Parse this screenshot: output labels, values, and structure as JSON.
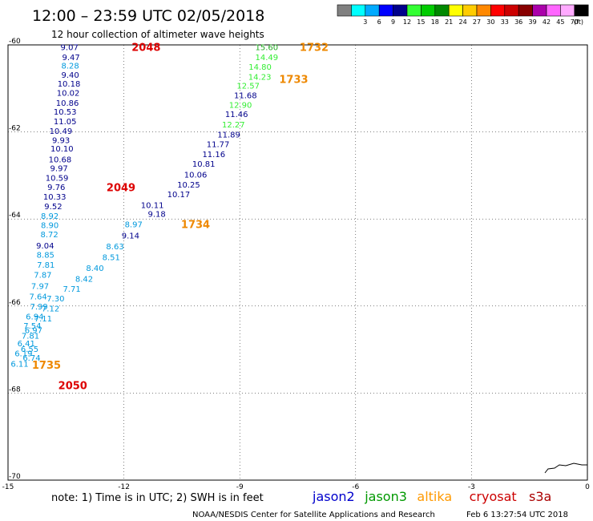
{
  "header": {
    "title": "12:00 – 23:59 UTC 02/05/2018",
    "subtitle": "12 hour collection of altimeter wave heights"
  },
  "colorbar": {
    "unit": "(ft)",
    "bins": [
      {
        "color": "#808080",
        "label": ""
      },
      {
        "color": "#00ffff",
        "label": "3"
      },
      {
        "color": "#00aaff",
        "label": "6"
      },
      {
        "color": "#0000ff",
        "label": "9"
      },
      {
        "color": "#00008b",
        "label": "12"
      },
      {
        "color": "#33ff33",
        "label": "15"
      },
      {
        "color": "#00cc00",
        "label": "18"
      },
      {
        "color": "#008800",
        "label": "21"
      },
      {
        "color": "#ffff00",
        "label": "24"
      },
      {
        "color": "#ffcc00",
        "label": "27"
      },
      {
        "color": "#ff8800",
        "label": "30"
      },
      {
        "color": "#ff0000",
        "label": "33"
      },
      {
        "color": "#cc0000",
        "label": "36"
      },
      {
        "color": "#880000",
        "label": "39"
      },
      {
        "color": "#aa00aa",
        "label": "42"
      },
      {
        "color": "#ff66ff",
        "label": "45"
      },
      {
        "color": "#ffaaff",
        "label": "70"
      },
      {
        "color": "#000000",
        "label": ""
      }
    ]
  },
  "map": {
    "lon_range": [
      -15,
      0
    ],
    "lat_range": [
      -70,
      -60
    ],
    "x_ticks": [
      "-15",
      "-12",
      "-9",
      "-6",
      "-3",
      "0"
    ],
    "y_ticks": [
      "-60",
      "-62",
      "-64",
      "-66",
      "-68",
      "-70"
    ],
    "grid": true
  },
  "observations": [
    {
      "text": "9.07",
      "lon": -13.64,
      "lat": -60.05,
      "color": "#00008b"
    },
    {
      "text": "9.47",
      "lon": -13.6,
      "lat": -60.28,
      "color": "#00008b"
    },
    {
      "text": "8.28",
      "lon": -13.62,
      "lat": -60.47,
      "color": "#0099dd"
    },
    {
      "text": "9.40",
      "lon": -13.62,
      "lat": -60.68,
      "color": "#00008b"
    },
    {
      "text": "10.18",
      "lon": -13.72,
      "lat": -60.88,
      "color": "#00008b"
    },
    {
      "text": "10.02",
      "lon": -13.74,
      "lat": -61.1,
      "color": "#00008b"
    },
    {
      "text": "10.86",
      "lon": -13.76,
      "lat": -61.33,
      "color": "#00008b"
    },
    {
      "text": "10.53",
      "lon": -13.82,
      "lat": -61.53,
      "color": "#00008b"
    },
    {
      "text": "11.05",
      "lon": -13.82,
      "lat": -61.75,
      "color": "#00008b"
    },
    {
      "text": "10.49",
      "lon": -13.93,
      "lat": -61.97,
      "color": "#00008b"
    },
    {
      "text": "9.93",
      "lon": -13.86,
      "lat": -62.18,
      "color": "#00008b"
    },
    {
      "text": "10.10",
      "lon": -13.9,
      "lat": -62.38,
      "color": "#00008b"
    },
    {
      "text": "10.68",
      "lon": -13.95,
      "lat": -62.62,
      "color": "#00008b"
    },
    {
      "text": "9.97",
      "lon": -13.91,
      "lat": -62.83,
      "color": "#00008b"
    },
    {
      "text": "10.59",
      "lon": -14.03,
      "lat": -63.05,
      "color": "#00008b"
    },
    {
      "text": "9.76",
      "lon": -13.98,
      "lat": -63.26,
      "color": "#00008b"
    },
    {
      "text": "10.33",
      "lon": -14.09,
      "lat": -63.48,
      "color": "#00008b"
    },
    {
      "text": "9.52",
      "lon": -14.06,
      "lat": -63.7,
      "color": "#00008b"
    },
    {
      "text": "8.92",
      "lon": -14.15,
      "lat": -63.92,
      "color": "#0099dd"
    },
    {
      "text": "8.90",
      "lon": -14.15,
      "lat": -64.13,
      "color": "#0099dd"
    },
    {
      "text": "8.72",
      "lon": -14.16,
      "lat": -64.35,
      "color": "#0099dd"
    },
    {
      "text": "9.04",
      "lon": -14.27,
      "lat": -64.6,
      "color": "#00008b"
    },
    {
      "text": "8.85",
      "lon": -14.26,
      "lat": -64.82,
      "color": "#0099dd"
    },
    {
      "text": "7.81",
      "lon": -14.25,
      "lat": -65.05,
      "color": "#0099dd"
    },
    {
      "text": "7.87",
      "lon": -14.33,
      "lat": -65.28,
      "color": "#0099dd"
    },
    {
      "text": "7.97",
      "lon": -14.4,
      "lat": -65.53,
      "color": "#0099dd"
    },
    {
      "text": "7.64",
      "lon": -14.45,
      "lat": -65.77,
      "color": "#0099dd"
    },
    {
      "text": "7.30",
      "lon": -14.0,
      "lat": -65.82,
      "color": "#0099dd"
    },
    {
      "text": "7.99",
      "lon": -14.43,
      "lat": -66.0,
      "color": "#0099dd"
    },
    {
      "text": "7.12",
      "lon": -14.13,
      "lat": -66.05,
      "color": "#0099dd"
    },
    {
      "text": "6.94",
      "lon": -14.54,
      "lat": -66.23,
      "color": "#0099dd"
    },
    {
      "text": "7.11",
      "lon": -14.32,
      "lat": -66.28,
      "color": "#0099dd"
    },
    {
      "text": "7.54",
      "lon": -14.6,
      "lat": -66.45,
      "color": "#0099dd"
    },
    {
      "text": "6.97",
      "lon": -14.57,
      "lat": -66.55,
      "color": "#0099dd"
    },
    {
      "text": "7.81",
      "lon": -14.65,
      "lat": -66.68,
      "color": "#0099dd"
    },
    {
      "text": "6.41",
      "lon": -14.76,
      "lat": -66.85,
      "color": "#0099dd"
    },
    {
      "text": "6.55",
      "lon": -14.67,
      "lat": -66.98,
      "color": "#0099dd"
    },
    {
      "text": "6.19",
      "lon": -14.83,
      "lat": -67.08,
      "color": "#0099dd"
    },
    {
      "text": "6.74",
      "lon": -14.62,
      "lat": -67.18,
      "color": "#0099dd"
    },
    {
      "text": "6.11",
      "lon": -14.93,
      "lat": -67.32,
      "color": "#0099dd"
    },
    {
      "text": "15.60",
      "lon": -8.6,
      "lat": -60.05,
      "color": "#22aa22"
    },
    {
      "text": "14.49",
      "lon": -8.6,
      "lat": -60.28,
      "color": "#33ee33"
    },
    {
      "text": "14.80",
      "lon": -8.77,
      "lat": -60.5,
      "color": "#33ee33"
    },
    {
      "text": "14.23",
      "lon": -8.78,
      "lat": -60.73,
      "color": "#33ee33"
    },
    {
      "text": "12.57",
      "lon": -9.08,
      "lat": -60.93,
      "color": "#33ee33"
    },
    {
      "text": "11.68",
      "lon": -9.15,
      "lat": -61.15,
      "color": "#00008b"
    },
    {
      "text": "12.90",
      "lon": -9.28,
      "lat": -61.37,
      "color": "#33ee33"
    },
    {
      "text": "11.46",
      "lon": -9.38,
      "lat": -61.58,
      "color": "#00008b"
    },
    {
      "text": "12.27",
      "lon": -9.46,
      "lat": -61.82,
      "color": "#33ee33"
    },
    {
      "text": "11.89",
      "lon": -9.58,
      "lat": -62.05,
      "color": "#00008b"
    },
    {
      "text": "11.77",
      "lon": -9.86,
      "lat": -62.27,
      "color": "#00008b"
    },
    {
      "text": "11.16",
      "lon": -9.97,
      "lat": -62.5,
      "color": "#00008b"
    },
    {
      "text": "10.81",
      "lon": -10.23,
      "lat": -62.73,
      "color": "#00008b"
    },
    {
      "text": "10.06",
      "lon": -10.44,
      "lat": -62.97,
      "color": "#00008b"
    },
    {
      "text": "10.25",
      "lon": -10.62,
      "lat": -63.2,
      "color": "#00008b"
    },
    {
      "text": "10.17",
      "lon": -10.88,
      "lat": -63.43,
      "color": "#00008b"
    },
    {
      "text": "10.11",
      "lon": -11.56,
      "lat": -63.67,
      "color": "#00008b"
    },
    {
      "text": "9.18",
      "lon": -11.38,
      "lat": -63.88,
      "color": "#00008b"
    },
    {
      "text": "8.97",
      "lon": -11.98,
      "lat": -64.12,
      "color": "#0099dd"
    },
    {
      "text": "9.14",
      "lon": -12.06,
      "lat": -64.37,
      "color": "#00008b"
    },
    {
      "text": "8.63",
      "lon": -12.46,
      "lat": -64.62,
      "color": "#0099dd"
    },
    {
      "text": "8.51",
      "lon": -12.56,
      "lat": -64.87,
      "color": "#0099dd"
    },
    {
      "text": "8.40",
      "lon": -12.98,
      "lat": -65.12,
      "color": "#0099dd"
    },
    {
      "text": "8.42",
      "lon": -13.26,
      "lat": -65.37,
      "color": "#0099dd"
    },
    {
      "text": "7.71",
      "lon": -13.58,
      "lat": -65.6,
      "color": "#0099dd"
    }
  ],
  "passes": [
    {
      "text": "2048",
      "lon": -11.8,
      "lat": -60.05,
      "color": "#dd0000"
    },
    {
      "text": "2049",
      "lon": -12.45,
      "lat": -63.27,
      "color": "#dd0000"
    },
    {
      "text": "2050",
      "lon": -13.7,
      "lat": -67.82,
      "color": "#dd0000"
    },
    {
      "text": "1732",
      "lon": -7.45,
      "lat": -60.05,
      "color": "#ee8800"
    },
    {
      "text": "1733",
      "lon": -7.98,
      "lat": -60.78,
      "color": "#ee8800"
    },
    {
      "text": "1734",
      "lon": -10.52,
      "lat": -64.12,
      "color": "#ee8800"
    },
    {
      "text": "1735",
      "lon": -14.38,
      "lat": -67.35,
      "color": "#ee8800"
    }
  ],
  "footer": {
    "note": "note:  1) Time is in UTC;  2) SWH is in feet",
    "satellites": [
      {
        "name": "jason2",
        "color": "#0000cc"
      },
      {
        "name": "jason3",
        "color": "#009900"
      },
      {
        "name": "altika",
        "color": "#ff9900"
      },
      {
        "name": "cryosat",
        "color": "#cc0000"
      },
      {
        "name": "s3a",
        "color": "#aa0000"
      }
    ],
    "credit": "NOAA/NESDIS Center for Satellite Applications and Research",
    "timestamp": "Feb  6 13:27:54 UTC 2018"
  }
}
